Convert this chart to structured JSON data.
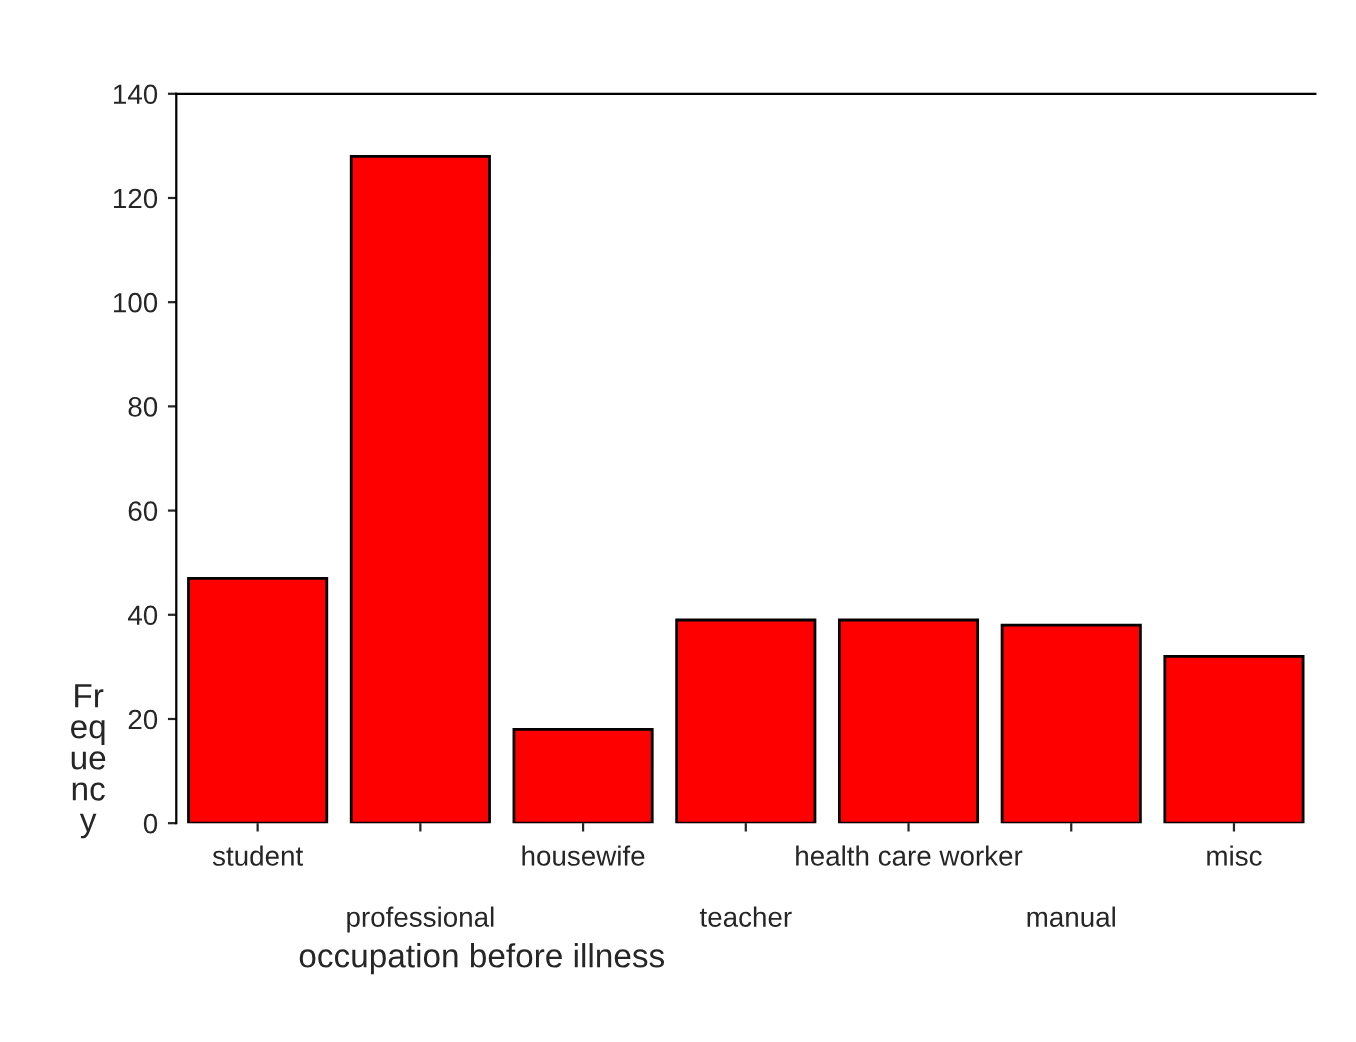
{
  "chart_data": {
    "type": "bar",
    "xlabel": "occupation before illness",
    "ylabel": "Frequency",
    "categories": [
      "student",
      "professional",
      "housewife",
      "teacher",
      "health care worker",
      "manual",
      "misc"
    ],
    "values": [
      47,
      128,
      18,
      39,
      39,
      38,
      32
    ],
    "color": "#ff0000",
    "ylim": [
      0,
      140
    ],
    "yticks": [
      0,
      20,
      40,
      60,
      80,
      100,
      120,
      140
    ],
    "grid": false
  }
}
